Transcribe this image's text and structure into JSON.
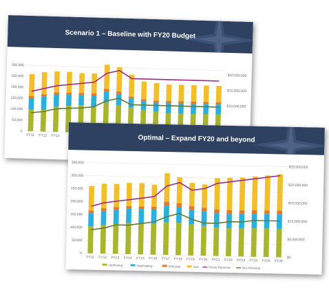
{
  "slides": [
    {
      "title": "Scenario 1 – Baseline with FY20 Budget"
    },
    {
      "title": "Optimal – Expand FY20 and beyond"
    }
  ],
  "colors": {
    "band": "#2e4160",
    "continuing": "#a9b52c",
    "reactivating": "#2ab0dd",
    "2nd year": "#e07a2b",
    "new": "#f2bf2a",
    "Gross Revenue": "#9b2d83",
    "Net Revenue": "#5e7a3a"
  },
  "chart_data": [
    {
      "type": "bar",
      "stacked": true,
      "categories": [
        "FY11",
        "FY12",
        "FY13",
        "FY14",
        "FY15",
        "FY16",
        "FY17",
        "FY18",
        "FY19",
        "FY20",
        "FY21",
        "FY22",
        "FY23",
        "FY24",
        "FY25",
        "FY26"
      ],
      "visible_category_labels": [
        "FY11",
        "FY12",
        "FY13"
      ],
      "series": [
        {
          "name": "continuing",
          "values": [
            100000,
            100000,
            115000,
            120000,
            125000,
            120000,
            140000,
            130000,
            120000,
            110000,
            105000,
            100000,
            100000,
            100000,
            100000,
            100000
          ]
        },
        {
          "name": "reactivating",
          "values": [
            50000,
            60000,
            55000,
            50000,
            45000,
            50000,
            50000,
            50000,
            40000,
            40000,
            40000,
            45000,
            45000,
            45000,
            45000,
            45000
          ]
        },
        {
          "name": "2nd year",
          "values": [
            10000,
            10000,
            10000,
            10000,
            10000,
            10000,
            12000,
            12000,
            10000,
            10000,
            10000,
            10000,
            10000,
            10000,
            10000,
            10000
          ]
        },
        {
          "name": "new",
          "values": [
            100000,
            100000,
            95000,
            95000,
            90000,
            90000,
            110000,
            110000,
            100000,
            80000,
            80000,
            75000,
            75000,
            75000,
            75000,
            75000
          ]
        }
      ],
      "lines": [
        {
          "name": "Gross Revenue",
          "axis": "right",
          "values": [
            13000000,
            14000000,
            15000000,
            15500000,
            16000000,
            16500000,
            19500000,
            20500000,
            18000000,
            18000000,
            18000000,
            18000000,
            18000000,
            18000000,
            18000000,
            18000000
          ]
        },
        {
          "name": "Net Revenue",
          "axis": "right",
          "values": [
            6000000,
            6500000,
            7500000,
            7800000,
            8000000,
            8500000,
            10500000,
            11500000,
            9500000,
            9500000,
            9500000,
            9500000,
            9500000,
            9500000,
            9500000,
            9500000
          ]
        }
      ],
      "left_ticks": [
        "300,000",
        "250,000",
        "200,000",
        "150,000",
        "100,000",
        "50,000",
        "0"
      ],
      "right_ticks": [
        "$20,000,000",
        "$15,000,000",
        "$10,000,000"
      ],
      "ylim": [
        0,
        350000
      ],
      "y2lim": [
        0,
        25000000
      ],
      "legend_visible": [
        "continuing"
      ]
    },
    {
      "type": "bar",
      "stacked": true,
      "categories": [
        "FY11",
        "FY12",
        "FY13",
        "FY14",
        "FY15",
        "FY16",
        "FY17",
        "FY18",
        "FY19",
        "FY20",
        "FY21",
        "FY22",
        "FY23",
        "FY24",
        "FY25",
        "FY26"
      ],
      "series": [
        {
          "name": "continuing",
          "values": [
            105000,
            110000,
            115000,
            120000,
            120000,
            120000,
            125000,
            125000,
            120000,
            115000,
            110000,
            108000,
            108000,
            110000,
            110000,
            110000
          ]
        },
        {
          "name": "reactivating",
          "values": [
            50000,
            55000,
            55000,
            55000,
            55000,
            55000,
            65000,
            60000,
            55000,
            55000,
            55000,
            55000,
            55000,
            55000,
            55000,
            55000
          ]
        },
        {
          "name": "2nd year",
          "values": [
            10000,
            10000,
            10000,
            10000,
            10000,
            10000,
            15000,
            15000,
            15000,
            15000,
            15000,
            15000,
            15000,
            15000,
            15000,
            15000
          ]
        },
        {
          "name": "new",
          "values": [
            95000,
            95000,
            90000,
            90000,
            90000,
            85000,
            110000,
            100000,
            90000,
            90000,
            120000,
            125000,
            127000,
            130000,
            135000,
            140000
          ]
        }
      ],
      "lines": [
        {
          "name": "Gross Revenue",
          "axis": "right",
          "values": [
            13000000,
            14000000,
            14500000,
            15000000,
            15500000,
            16000000,
            19000000,
            20000000,
            18000000,
            18500000,
            20000000,
            20500000,
            21000000,
            21500000,
            22000000,
            22500000
          ]
        },
        {
          "name": "Net Revenue",
          "axis": "right",
          "values": [
            6500000,
            7000000,
            8000000,
            8000000,
            8500000,
            9000000,
            10500000,
            11500000,
            10000000,
            9000000,
            9000000,
            9500000,
            9500000,
            10000000,
            10000000,
            10000000
          ]
        }
      ],
      "left_ticks": [
        "350,000",
        "300,000",
        "250,000",
        "200,000",
        "150,000",
        "100,000",
        "50,000",
        "0"
      ],
      "right_ticks": [
        "$25,000,000",
        "$20,000,000",
        "$15,000,000",
        "$10,000,000",
        "$5,000,000",
        "$0"
      ],
      "ylim": [
        0,
        350000
      ],
      "y2lim": [
        0,
        25000000
      ],
      "legend": [
        "continuing",
        "reactivating",
        "2nd year",
        "new",
        "Gross Revenue",
        "Net Revenue"
      ]
    }
  ]
}
